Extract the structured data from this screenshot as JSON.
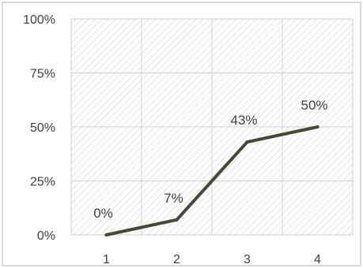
{
  "chart_data": {
    "type": "line",
    "title": "",
    "xlabel": "",
    "ylabel": "",
    "categories": [
      "1",
      "2",
      "3",
      "4"
    ],
    "series": [
      {
        "values": [
          0,
          7,
          43,
          50
        ],
        "data_labels": [
          "0%",
          "7%",
          "43%",
          "50%"
        ],
        "color": "#4a4632"
      }
    ],
    "ylim": [
      0,
      100
    ],
    "y_ticks": [
      0,
      25,
      50,
      75,
      100
    ],
    "y_tick_labels": [
      "0%",
      "25%",
      "50%",
      "75%",
      "100%"
    ],
    "grid": true,
    "plot_background": "hatched",
    "frame_color": "#d9d9d9",
    "grid_color": "#d0d0d0",
    "hatch_color": "#d6d6d6"
  }
}
